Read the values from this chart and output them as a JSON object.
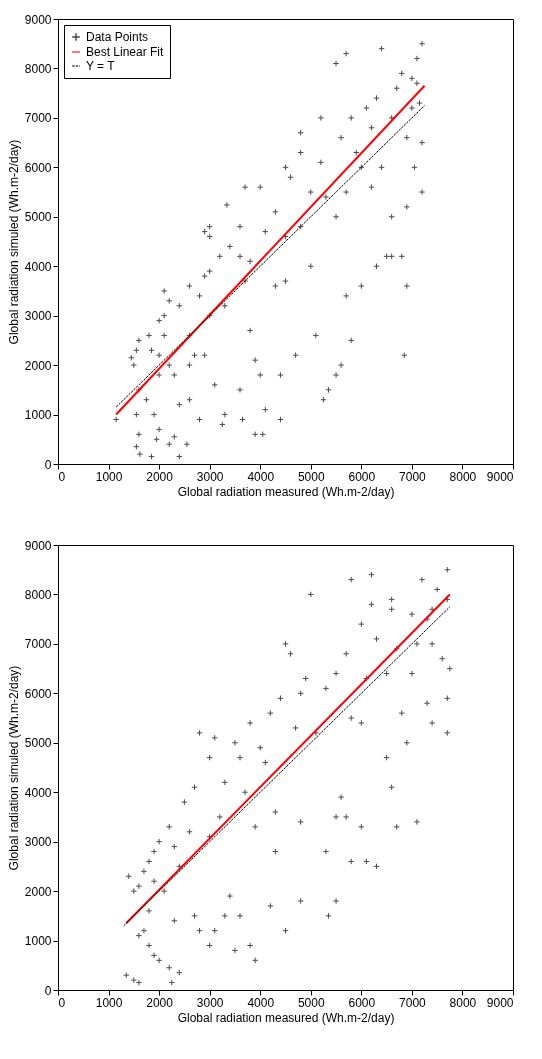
{
  "chart_data": [
    {
      "type": "scatter",
      "xlabel": "Global radiation measured (Wh.m-2/day)",
      "ylabel": "Global radiation simuled (Wh.m-2/day)",
      "xlim": [
        0,
        9000
      ],
      "ylim": [
        0,
        9000
      ],
      "xticks": [
        0,
        1000,
        2000,
        3000,
        4000,
        5000,
        6000,
        7000,
        8000,
        9000
      ],
      "yticks": [
        0,
        1000,
        2000,
        3000,
        4000,
        5000,
        6000,
        7000,
        8000,
        9000
      ],
      "grid": false,
      "legend": "top left",
      "series": [
        {
          "name": "Data Points",
          "type": "scatter",
          "marker": "cross",
          "color": "#000000",
          "x": [
            1150,
            1550,
            1600,
            1550,
            1620,
            1850,
            2400,
            1950,
            2000,
            2300,
            2550,
            2200,
            1900,
            1750,
            1600,
            1500,
            1450,
            1550,
            1600,
            1800,
            1850,
            2000,
            2100,
            2200,
            2000,
            2300,
            2600,
            2700,
            2900,
            2100,
            2000,
            2200,
            2100,
            2400,
            2600,
            2800,
            2900,
            3000,
            3200,
            3000,
            3400,
            3600,
            3700,
            3300,
            3000,
            2600,
            2600,
            2400,
            3100,
            3300,
            3600,
            3900,
            4000,
            4400,
            4100,
            3800,
            4300,
            4700,
            5100,
            5600,
            5800,
            5250,
            5350,
            5500,
            6850,
            4400,
            3900,
            4050,
            2800,
            3650,
            3250,
            5700,
            6000,
            6300,
            6600,
            6900,
            6800,
            5000,
            4500,
            3800,
            3340,
            2900,
            3000,
            3700,
            4000,
            4500,
            4800,
            5200,
            5500,
            5700,
            6400,
            6800,
            7200,
            7100,
            7000,
            6700,
            6300,
            6100,
            5800,
            5600,
            5900,
            6200,
            6600,
            7000,
            7100,
            6900,
            7200,
            7050,
            7200,
            6900,
            6500,
            6600,
            5500,
            5300,
            5000,
            4600,
            4800,
            4300,
            4100,
            3600,
            5700,
            6200,
            6000,
            4800,
            4500,
            7150,
            6400,
            5200
          ],
          "values": [
            900,
            1000,
            600,
            350,
            200,
            150,
            150,
            500,
            700,
            550,
            400,
            400,
            1000,
            1300,
            1500,
            2000,
            2150,
            2300,
            2500,
            2600,
            2300,
            2200,
            2600,
            2000,
            1800,
            1800,
            2000,
            2200,
            2200,
            3000,
            2900,
            3300,
            3500,
            3200,
            3600,
            3400,
            3800,
            3900,
            4200,
            4600,
            4400,
            4200,
            3700,
            3200,
            3000,
            2600,
            1300,
            1200,
            1600,
            1000,
            1500,
            2100,
            1800,
            1800,
            1100,
            2700,
            3600,
            2200,
            2600,
            2000,
            2500,
            1300,
            1500,
            1800,
            2200,
            900,
            600,
            600,
            900,
            900,
            800,
            3400,
            3600,
            4000,
            4200,
            3600,
            4200,
            4000,
            3700,
            4100,
            5240,
            4700,
            4800,
            5600,
            5600,
            6000,
            6700,
            7000,
            8100,
            8300,
            8400,
            7900,
            8500,
            8200,
            7800,
            7600,
            7400,
            7200,
            7000,
            6600,
            6300,
            6800,
            7000,
            7200,
            7700,
            6600,
            6500,
            6000,
            5500,
            5200,
            4200,
            5000,
            5000,
            5400,
            5500,
            5800,
            6300,
            5100,
            4700,
            4800,
            5500,
            5600,
            6000,
            4800,
            4600,
            7300,
            6000,
            6100
          ]
        },
        {
          "name": "Best Linear Fit",
          "type": "line",
          "color": "#ff0000",
          "line_style": "solid",
          "x": [
            1150,
            7250
          ],
          "values": [
            1000,
            7650
          ]
        },
        {
          "name": "Y = T",
          "type": "line",
          "color": "#000000",
          "line_style": "dashed",
          "x": [
            1150,
            7250
          ],
          "values": [
            1150,
            7250
          ]
        }
      ]
    },
    {
      "type": "scatter",
      "xlabel": "Global radiation measured (Wh.m-2/day)",
      "ylabel": "Global radiation simuled (Wh.m-2/day)",
      "xlim": [
        0,
        9000
      ],
      "ylim": [
        0,
        9000
      ],
      "xticks": [
        0,
        1000,
        2000,
        3000,
        4000,
        5000,
        6000,
        7000,
        8000,
        9000
      ],
      "yticks": [
        0,
        1000,
        2000,
        3000,
        4000,
        5000,
        6000,
        7000,
        8000,
        9000
      ],
      "grid": false,
      "legend": "top left",
      "series": [
        {
          "name": "Data Points",
          "type": "scatter",
          "marker": "cross",
          "color": "#000000",
          "x": [
            5000,
            6200,
            5800,
            7200,
            7700,
            7500,
            7700,
            7400,
            7000,
            6600,
            6200,
            6000,
            6300,
            6700,
            7100,
            7400,
            7600,
            7750,
            7700,
            7700,
            7300,
            7400,
            6900,
            6800,
            7000,
            6500,
            6100,
            5700,
            5500,
            5300,
            4900,
            4500,
            4600,
            4800,
            4400,
            4700,
            5100,
            5800,
            6000,
            6500,
            6600,
            6700,
            7100,
            6000,
            5700,
            5300,
            4800,
            5500,
            6100,
            6300,
            5600,
            3800,
            3500,
            3000,
            3300,
            2700,
            2500,
            4100,
            4300,
            3700,
            3900,
            2200,
            2000,
            2300,
            1900,
            1800,
            1700,
            1400,
            1500,
            1600,
            1900,
            2100,
            1800,
            1700,
            1600,
            1800,
            1900,
            2000,
            2200,
            1500,
            1600,
            2250,
            2400,
            1350,
            2300,
            2800,
            3000,
            3100,
            2700,
            3300,
            3600,
            3400,
            3500,
            3900,
            3800,
            4200,
            4500,
            4800,
            5350,
            5500,
            5800,
            4300,
            2600,
            2400,
            3000,
            3200,
            4000,
            3600,
            3100,
            2800,
            4200,
            6600,
            7300
          ],
          "values": [
            8000,
            8400,
            8300,
            8300,
            8500,
            8100,
            7900,
            7700,
            7600,
            7900,
            7800,
            7400,
            7100,
            6900,
            7000,
            7000,
            6700,
            6500,
            5900,
            5200,
            5800,
            5400,
            5000,
            5600,
            6400,
            6400,
            6300,
            6800,
            6400,
            6100,
            6300,
            7000,
            6800,
            6000,
            5900,
            5300,
            5200,
            5500,
            5400,
            4700,
            4100,
            3300,
            3400,
            3300,
            3500,
            2800,
            3400,
            3500,
            2600,
            2500,
            3900,
            5400,
            5000,
            4700,
            4200,
            4100,
            3800,
            4600,
            3600,
            4000,
            3300,
            3300,
            3000,
            2900,
            2800,
            2600,
            2400,
            2300,
            2000,
            2100,
            2200,
            2000,
            1600,
            1200,
            1100,
            900,
            700,
            600,
            450,
            200,
            150,
            150,
            350,
            300,
            1400,
            1200,
            900,
            1200,
            1500,
            1500,
            1500,
            1900,
            800,
            600,
            900,
            1700,
            1200,
            1800,
            1500,
            1800,
            2600,
            2800,
            3200,
            2500,
            3100,
            3500,
            4900,
            4700,
            5100,
            5200,
            5600,
            7700,
            7500
          ]
        },
        {
          "name": "Best Linear Fit",
          "type": "line",
          "color": "#ff0000",
          "line_style": "solid",
          "x": [
            1350,
            7750
          ],
          "values": [
            1350,
            8000
          ]
        },
        {
          "name": "Y = T",
          "type": "line",
          "color": "#000000",
          "line_style": "dashed",
          "x": [
            1300,
            7750
          ],
          "values": [
            1300,
            7750
          ]
        }
      ]
    }
  ]
}
